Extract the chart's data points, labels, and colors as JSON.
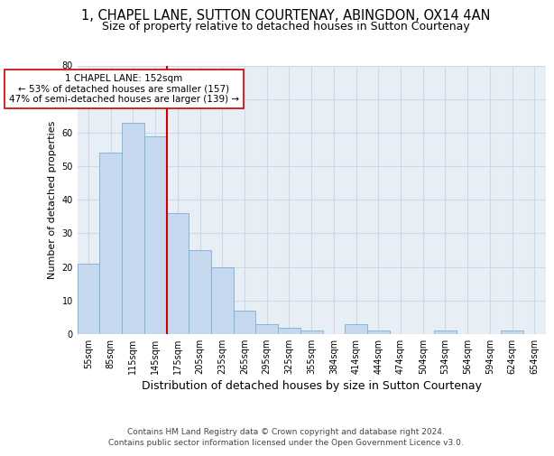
{
  "title1": "1, CHAPEL LANE, SUTTON COURTENAY, ABINGDON, OX14 4AN",
  "title2": "Size of property relative to detached houses in Sutton Courtenay",
  "xlabel": "Distribution of detached houses by size in Sutton Courtenay",
  "ylabel": "Number of detached properties",
  "categories": [
    "55sqm",
    "85sqm",
    "115sqm",
    "145sqm",
    "175sqm",
    "205sqm",
    "235sqm",
    "265sqm",
    "295sqm",
    "325sqm",
    "355sqm",
    "384sqm",
    "414sqm",
    "444sqm",
    "474sqm",
    "504sqm",
    "534sqm",
    "564sqm",
    "594sqm",
    "624sqm",
    "654sqm"
  ],
  "values": [
    21,
    54,
    63,
    59,
    36,
    25,
    20,
    7,
    3,
    2,
    1,
    0,
    3,
    1,
    0,
    0,
    1,
    0,
    0,
    1,
    0
  ],
  "bar_color": "#c5d8ed",
  "bar_edge_color": "#7bafd4",
  "vline_x": 3.5,
  "vline_color": "#cc0000",
  "annotation_text": "1 CHAPEL LANE: 152sqm\n← 53% of detached houses are smaller (157)\n47% of semi-detached houses are larger (139) →",
  "annotation_box_color": "#ffffff",
  "annotation_box_edge": "#cc0000",
  "ylim": [
    0,
    80
  ],
  "yticks": [
    0,
    10,
    20,
    30,
    40,
    50,
    60,
    70,
    80
  ],
  "grid_color": "#d0d8e8",
  "bg_color": "#e8eef5",
  "footer": "Contains HM Land Registry data © Crown copyright and database right 2024.\nContains public sector information licensed under the Open Government Licence v3.0.",
  "title1_fontsize": 10.5,
  "title2_fontsize": 9,
  "xlabel_fontsize": 9,
  "ylabel_fontsize": 8,
  "tick_fontsize": 7,
  "footer_fontsize": 6.5,
  "ann_fontsize": 7.5
}
